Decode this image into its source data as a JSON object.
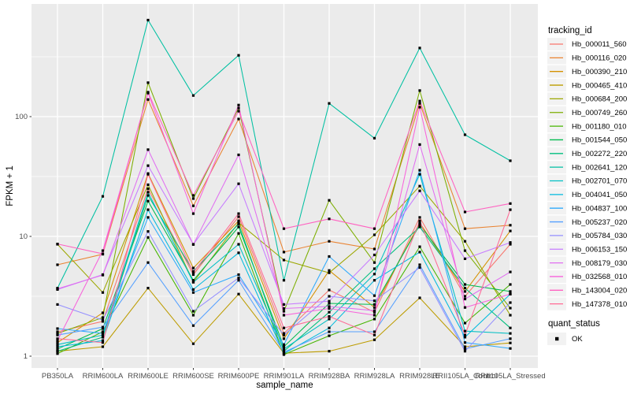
{
  "chart_data": {
    "type": "line",
    "title": "",
    "xlabel": "sample_name",
    "ylabel": "FPKM + 1",
    "y_scale": "log10",
    "y_ticks": [
      1,
      10,
      100
    ],
    "ylim": [
      1,
      870
    ],
    "grid": true,
    "legend_position": "right",
    "legend_title": "tracking_id",
    "panel_bg": "#EBEBEB",
    "grid_color": "#FFFFFF",
    "axis_text_color": "#4D4D4D",
    "point_color": "#000000",
    "categories": [
      "PB350LA",
      "RRIM600LA",
      "RRIM600LE",
      "RRIM600SE",
      "RRIM600PE",
      "RRIM901LA",
      "RRIM928BA",
      "RRIM928LA",
      "RRIM928LE",
      "RRII105LA_Control",
      "RRII105LA_Stressed"
    ],
    "series": [
      {
        "name": "Hb_000011_560",
        "color": "#F8766D",
        "values": [
          1.6,
          1.95,
          25,
          4.8,
          14.6,
          1.55,
          3.57,
          2.33,
          14.4,
          3.16,
          8.6
        ]
      },
      {
        "name": "Hb_000116_020",
        "color": "#EA8331",
        "values": [
          5.8,
          7.1,
          139,
          18,
          95.5,
          7.4,
          9.1,
          7.85,
          129,
          11.6,
          12.4
        ]
      },
      {
        "name": "Hb_000390_210",
        "color": "#D59100",
        "values": [
          1.3,
          2.3,
          33.5,
          5.45,
          13.5,
          1.4,
          5.2,
          2.55,
          13,
          3.47,
          11.1
        ]
      },
      {
        "name": "Hb_000465_410",
        "color": "#BD9C00",
        "values": [
          1.1,
          1.2,
          3.7,
          1.27,
          3.3,
          1.06,
          1.1,
          1.37,
          3.07,
          1.2,
          1.29
        ]
      },
      {
        "name": "Hb_000684_200",
        "color": "#9CA700",
        "values": [
          8.6,
          3.4,
          27,
          4.15,
          13,
          6.35,
          4.97,
          10.3,
          26.3,
          9.1,
          2.2
        ]
      },
      {
        "name": "Hb_000749_260",
        "color": "#7CAE00",
        "values": [
          1.55,
          2.1,
          192,
          20.7,
          118,
          2.37,
          20,
          6.05,
          165,
          7.6,
          2.52
        ]
      },
      {
        "name": "Hb_001180_010",
        "color": "#45B500",
        "values": [
          1.05,
          1.6,
          9.8,
          2.2,
          10.6,
          1.03,
          1.48,
          2.04,
          8.2,
          1.89,
          3.97
        ]
      },
      {
        "name": "Hb_001544_050",
        "color": "#00BB4E",
        "values": [
          1.15,
          1.7,
          19.7,
          4.3,
          12,
          1.2,
          2.76,
          2.7,
          12.5,
          3.97,
          3.47
        ]
      },
      {
        "name": "Hb_002272_220",
        "color": "#00BF7E",
        "values": [
          1.1,
          1.44,
          22,
          5.1,
          12.7,
          1.1,
          2.33,
          5.37,
          12,
          3.7,
          1.72
        ]
      },
      {
        "name": "Hb_002641_120",
        "color": "#00C0A2",
        "values": [
          3.7,
          21.6,
          640,
          150,
          325,
          4.3,
          129,
          66,
          374,
          70.6,
          42.8
        ]
      },
      {
        "name": "Hb_002701_070",
        "color": "#00BFC4",
        "values": [
          1.25,
          1.5,
          23.4,
          4.15,
          8.6,
          1.15,
          2.04,
          4.85,
          33,
          1.62,
          1.55
        ]
      },
      {
        "name": "Hb_004041_050",
        "color": "#00BADE",
        "values": [
          1.2,
          1.35,
          16.7,
          3.6,
          7.3,
          1.05,
          1.72,
          4.3,
          7.4,
          1.44,
          3.3
        ]
      },
      {
        "name": "Hb_004837_100",
        "color": "#2FABFC",
        "values": [
          1.7,
          1.55,
          14.4,
          3.4,
          4.8,
          1.25,
          6.8,
          3.2,
          35.7,
          1.3,
          1.16
        ]
      },
      {
        "name": "Hb_005237_020",
        "color": "#55A0FF",
        "values": [
          1.5,
          1.75,
          6.05,
          1.8,
          4.3,
          1.08,
          1.6,
          1.6,
          5.8,
          1.15,
          1.4
        ]
      },
      {
        "name": "Hb_005784_030",
        "color": "#9590FF",
        "values": [
          2.7,
          2.0,
          11,
          2.37,
          4.5,
          1.5,
          3.16,
          2.9,
          5.5,
          1.1,
          2.8
        ]
      },
      {
        "name": "Hb_006153_150",
        "color": "#C77CFF",
        "values": [
          3.6,
          4.8,
          39,
          8.6,
          27.5,
          2.7,
          2.88,
          7.0,
          24,
          6.5,
          8.9
        ]
      },
      {
        "name": "Hb_008179_030",
        "color": "#E16FF1",
        "values": [
          3.65,
          4.75,
          53,
          8.55,
          48,
          2.5,
          2.6,
          2.4,
          58.5,
          3.0,
          5.05
        ]
      },
      {
        "name": "Hb_032568_010",
        "color": "#F863DB",
        "values": [
          1.35,
          7.6,
          157,
          15.5,
          125,
          2.2,
          2.5,
          2.2,
          120,
          2.55,
          3.3
        ]
      },
      {
        "name": "Hb_143004_020",
        "color": "#FF62C1",
        "values": [
          8.65,
          7.15,
          160,
          22,
          111,
          11.6,
          14,
          11.6,
          135,
          16,
          18.8
        ]
      },
      {
        "name": "Hb_147378_010",
        "color": "#FF6A95",
        "values": [
          1.4,
          1.3,
          33,
          5.0,
          15.5,
          1.72,
          2.15,
          1.5,
          13.5,
          1.5,
          16.7
        ]
      }
    ],
    "quant_legend": {
      "title": "quant_status",
      "items": [
        {
          "label": "OK",
          "marker": "black-square"
        }
      ]
    }
  }
}
